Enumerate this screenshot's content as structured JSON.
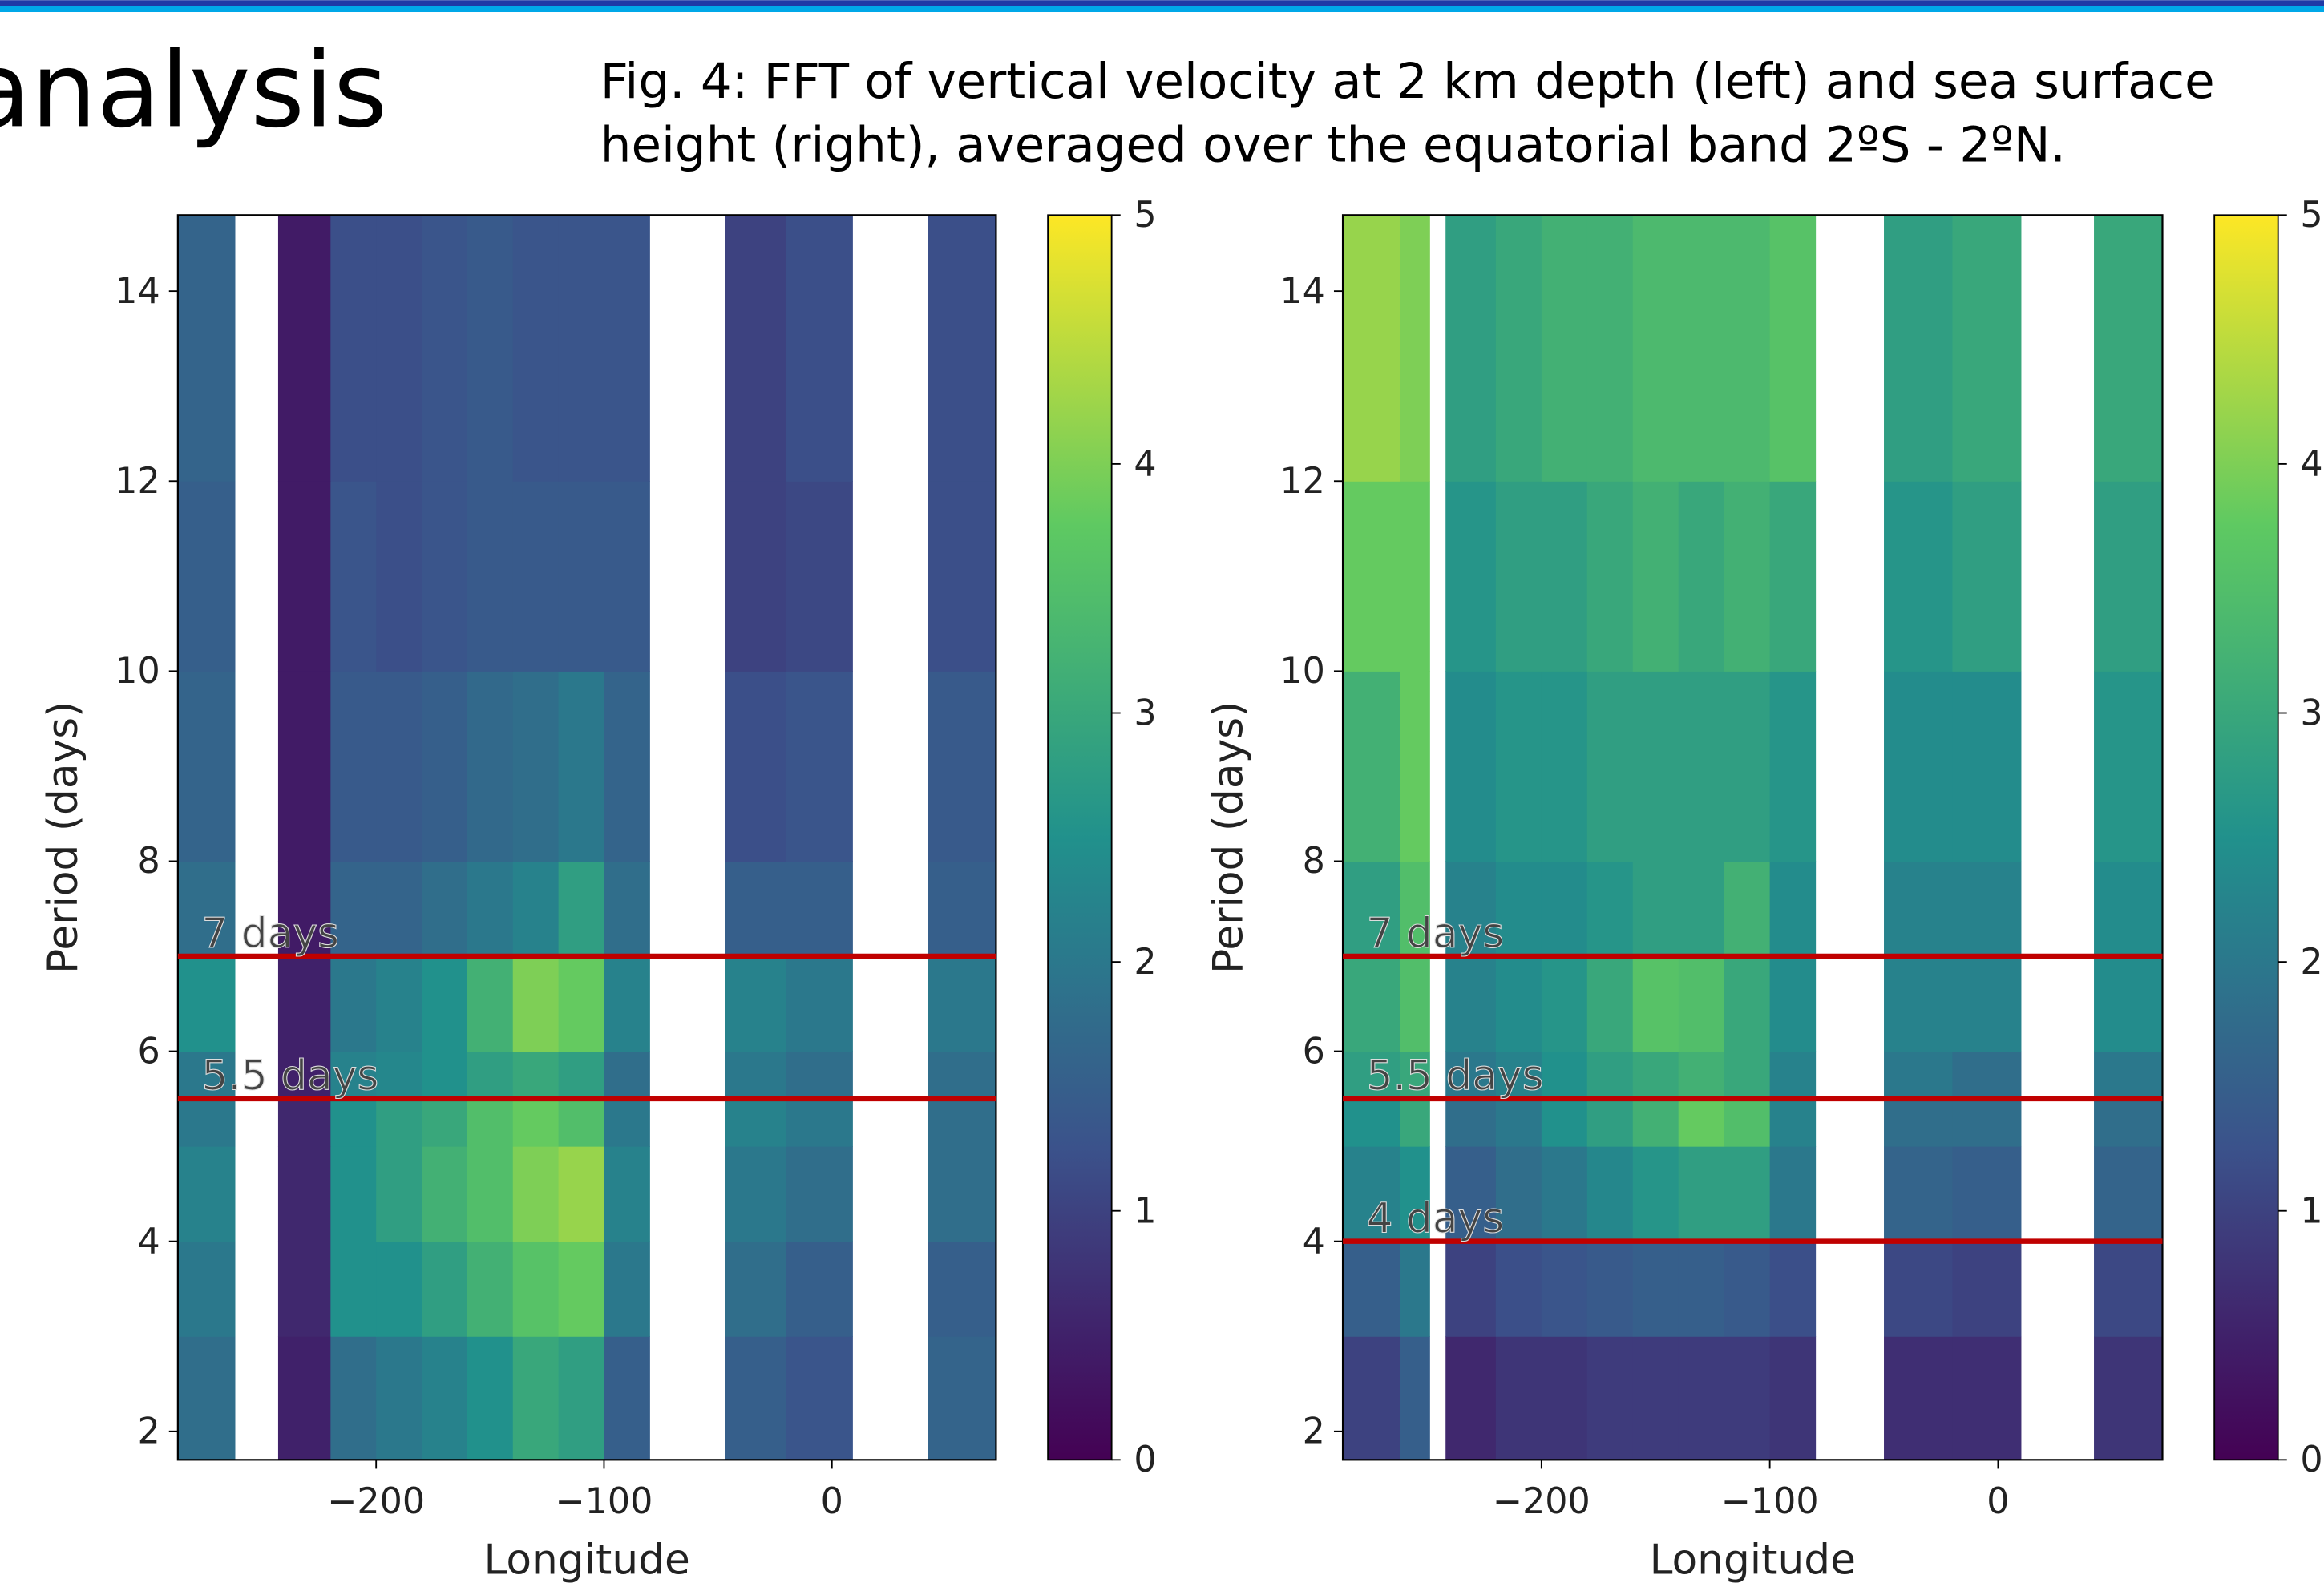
{
  "slide": {
    "title": "analysis",
    "caption_lines": [
      "Fig. 4: FFT of vertical velocity at 2 km depth (left) and sea surface",
      "height (right), averaged over the equatorial band 2ºS - 2ºN."
    ]
  },
  "chart_data": [
    {
      "type": "heatmap",
      "x_label": "Longitude",
      "y_label": "Period (days)",
      "xlim": [
        -287,
        72
      ],
      "ylim": [
        1.7,
        14.8
      ],
      "xticks": [
        {
          "value": -200,
          "label": "−200"
        },
        {
          "value": -100,
          "label": "−100"
        },
        0
      ],
      "yticks": [
        2,
        4,
        6,
        8,
        10,
        12,
        14
      ],
      "colormap": "viridis",
      "clim": [
        0,
        5
      ],
      "cticks": [
        0,
        1,
        2,
        3,
        4,
        5
      ],
      "x_edges": [
        -287,
        -262,
        -243,
        -220,
        -200,
        -180,
        -160,
        -140,
        -120,
        -100,
        -80,
        -47,
        -20,
        9,
        42,
        72
      ],
      "y_edges": [
        1.7,
        3,
        4,
        5,
        5.5,
        6,
        7,
        8,
        10,
        12,
        14.8
      ],
      "z": [
        [
          1.8,
          null,
          0.5,
          1.8,
          2.0,
          2.2,
          2.5,
          3.0,
          2.8,
          1.5,
          null,
          1.5,
          1.3,
          null,
          1.6
        ],
        [
          2.0,
          null,
          0.6,
          2.5,
          2.5,
          2.8,
          3.2,
          3.6,
          3.8,
          2.0,
          null,
          1.8,
          1.5,
          null,
          1.5
        ],
        [
          2.2,
          null,
          0.6,
          2.5,
          2.8,
          3.2,
          3.5,
          4.0,
          4.2,
          2.2,
          null,
          2.0,
          1.8,
          null,
          1.8
        ],
        [
          2.0,
          null,
          0.6,
          2.5,
          2.8,
          3.0,
          3.5,
          3.8,
          3.5,
          2.0,
          null,
          2.2,
          2.0,
          null,
          1.8
        ],
        [
          2.0,
          null,
          0.5,
          2.2,
          2.3,
          2.5,
          2.8,
          3.0,
          2.8,
          1.8,
          null,
          2.0,
          1.8,
          null,
          1.8
        ],
        [
          2.5,
          null,
          0.5,
          2.0,
          2.2,
          2.5,
          3.2,
          4.0,
          3.8,
          2.2,
          null,
          2.2,
          2.0,
          null,
          2.0
        ],
        [
          1.8,
          null,
          0.4,
          1.6,
          1.6,
          1.8,
          2.0,
          2.2,
          2.8,
          1.8,
          null,
          1.5,
          1.5,
          null,
          1.5
        ],
        [
          1.6,
          null,
          0.4,
          1.4,
          1.4,
          1.5,
          1.7,
          1.8,
          2.0,
          1.6,
          null,
          1.2,
          1.3,
          null,
          1.4
        ],
        [
          1.5,
          null,
          0.4,
          1.3,
          1.2,
          1.3,
          1.4,
          1.4,
          1.4,
          1.4,
          null,
          1.0,
          1.1,
          null,
          1.2
        ],
        [
          1.6,
          null,
          0.4,
          1.2,
          1.2,
          1.3,
          1.4,
          1.3,
          1.3,
          1.3,
          null,
          1.0,
          1.2,
          null,
          1.2
        ]
      ],
      "annotations": [
        {
          "value": 7,
          "label": "7 days",
          "color": "#c00000"
        },
        {
          "value": 5.5,
          "label": "5.5 days",
          "color": "#c00000"
        }
      ]
    },
    {
      "type": "heatmap",
      "x_label": "Longitude",
      "y_label": "Period (days)",
      "xlim": [
        -287,
        72
      ],
      "ylim": [
        1.7,
        14.8
      ],
      "xticks": [
        {
          "value": -200,
          "label": "−200"
        },
        {
          "value": -100,
          "label": "−100"
        },
        0
      ],
      "yticks": [
        2,
        4,
        6,
        8,
        10,
        12,
        14
      ],
      "colormap": "viridis",
      "clim": [
        0,
        5
      ],
      "cticks": [
        0,
        1,
        2,
        3,
        4,
        5
      ],
      "x_edges": [
        -287,
        -262,
        -249,
        -242,
        -220,
        -200,
        -180,
        -160,
        -140,
        -120,
        -100,
        -80,
        -50,
        -20,
        10,
        42,
        72
      ],
      "y_edges": [
        1.7,
        3,
        4,
        5,
        5.5,
        6,
        7,
        8,
        10,
        12,
        14.8
      ],
      "z": [
        [
          1.0,
          1.5,
          null,
          0.6,
          0.8,
          0.8,
          0.9,
          0.9,
          0.9,
          0.9,
          0.8,
          null,
          0.7,
          0.7,
          null,
          0.8
        ],
        [
          1.5,
          2.0,
          null,
          1.0,
          1.2,
          1.3,
          1.4,
          1.5,
          1.5,
          1.4,
          1.2,
          null,
          1.1,
          1.0,
          null,
          1.1
        ],
        [
          2.2,
          2.5,
          null,
          1.5,
          1.8,
          2.0,
          2.3,
          2.6,
          2.8,
          2.8,
          2.0,
          null,
          1.6,
          1.5,
          null,
          1.6
        ],
        [
          2.5,
          3.0,
          null,
          1.8,
          2.0,
          2.5,
          2.8,
          3.2,
          3.8,
          3.5,
          2.2,
          null,
          1.8,
          1.8,
          null,
          1.8
        ],
        [
          2.8,
          3.0,
          null,
          2.0,
          2.2,
          2.5,
          2.8,
          3.0,
          3.2,
          3.0,
          2.2,
          null,
          2.0,
          1.8,
          null,
          2.0
        ],
        [
          3.0,
          3.5,
          null,
          2.2,
          2.4,
          2.6,
          3.0,
          3.6,
          3.5,
          3.0,
          2.4,
          null,
          2.2,
          2.2,
          null,
          2.4
        ],
        [
          2.8,
          3.5,
          null,
          2.2,
          2.4,
          2.4,
          2.6,
          2.8,
          2.8,
          3.2,
          2.4,
          null,
          2.2,
          2.2,
          null,
          2.4
        ],
        [
          3.2,
          3.8,
          null,
          2.4,
          2.6,
          2.6,
          2.8,
          2.8,
          2.8,
          2.8,
          2.6,
          null,
          2.4,
          2.4,
          null,
          2.6
        ],
        [
          3.8,
          3.8,
          null,
          2.6,
          2.8,
          2.8,
          3.0,
          3.2,
          3.0,
          3.2,
          3.0,
          null,
          2.6,
          2.8,
          null,
          2.8
        ],
        [
          4.2,
          4.0,
          null,
          2.8,
          3.0,
          3.2,
          3.2,
          3.4,
          3.4,
          3.4,
          3.6,
          null,
          2.8,
          3.0,
          null,
          3.0
        ]
      ],
      "annotations": [
        {
          "value": 7,
          "label": "7 days",
          "color": "#c00000"
        },
        {
          "value": 5.5,
          "label": "5.5 days",
          "color": "#c00000"
        },
        {
          "value": 4,
          "label": "4 days",
          "color": "#c00000"
        }
      ]
    }
  ]
}
